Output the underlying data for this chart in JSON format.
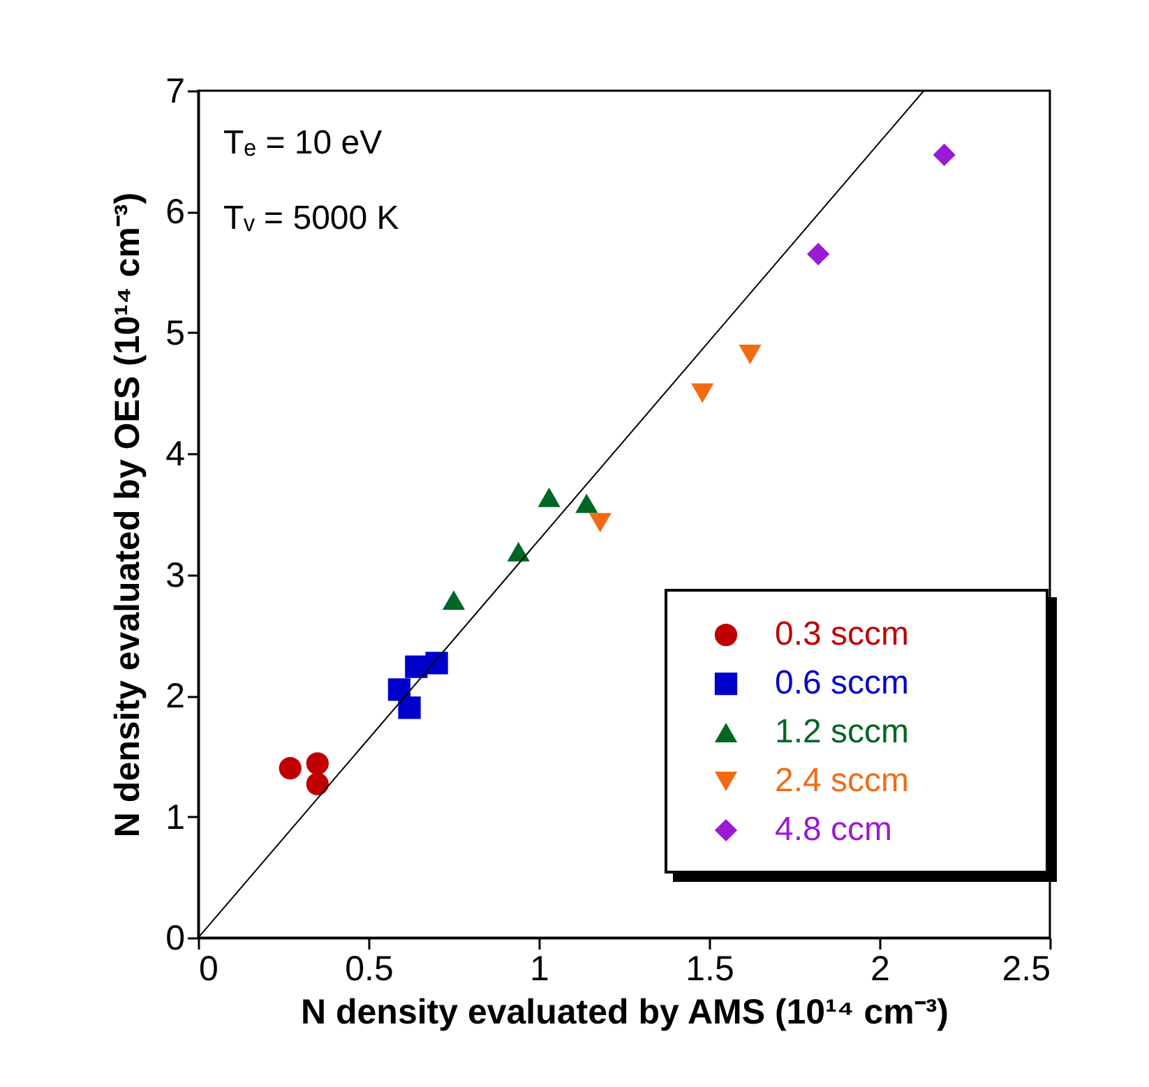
{
  "chart_data": {
    "type": "scatter",
    "xlabel": "N density evaluated by AMS  (10¹⁴ cm⁻³)",
    "ylabel": "N density evaluated by OES  (10¹⁴ cm⁻³)",
    "xlim": [
      0,
      2.5
    ],
    "xticks": [
      0,
      0.5,
      1,
      1.5,
      2,
      2.5
    ],
    "ylim": [
      0,
      7
    ],
    "yticks": [
      0,
      1,
      2,
      3,
      4,
      5,
      6,
      7
    ],
    "grid": false,
    "legend": "bottom right",
    "annotations": [
      "Tₑ = 10 eV",
      "Tᵥ = 5000 K"
    ],
    "series": [
      {
        "name": "0.3 sccm",
        "color": "#c00000",
        "marker": "circle",
        "x": [
          0.27,
          0.35,
          0.35
        ],
        "values": [
          1.4,
          1.44,
          1.27
        ]
      },
      {
        "name": "0.6 sccm",
        "color": "#0000cc",
        "marker": "square",
        "x": [
          0.59,
          0.62,
          0.64,
          0.7
        ],
        "values": [
          2.05,
          1.9,
          2.24,
          2.27
        ]
      },
      {
        "name": "1.2 sccm",
        "color": "#006622",
        "marker": "triangle",
        "x": [
          0.75,
          0.94,
          1.03,
          1.14
        ],
        "values": [
          2.79,
          3.19,
          3.64,
          3.59
        ]
      },
      {
        "name": "2.4 sccm",
        "color": "#f26b12",
        "marker": "triangle-down",
        "x": [
          1.18,
          1.48,
          1.62
        ],
        "values": [
          3.43,
          4.5,
          4.82
        ]
      },
      {
        "name": "4.8 ccm",
        "color": "#9b1ad6",
        "marker": "diamond",
        "x": [
          1.82,
          2.19
        ],
        "values": [
          5.65,
          6.47
        ]
      },
      {
        "type": "line",
        "color": "#000000",
        "x": [
          0,
          2.13
        ],
        "values": [
          0,
          7
        ]
      }
    ]
  }
}
